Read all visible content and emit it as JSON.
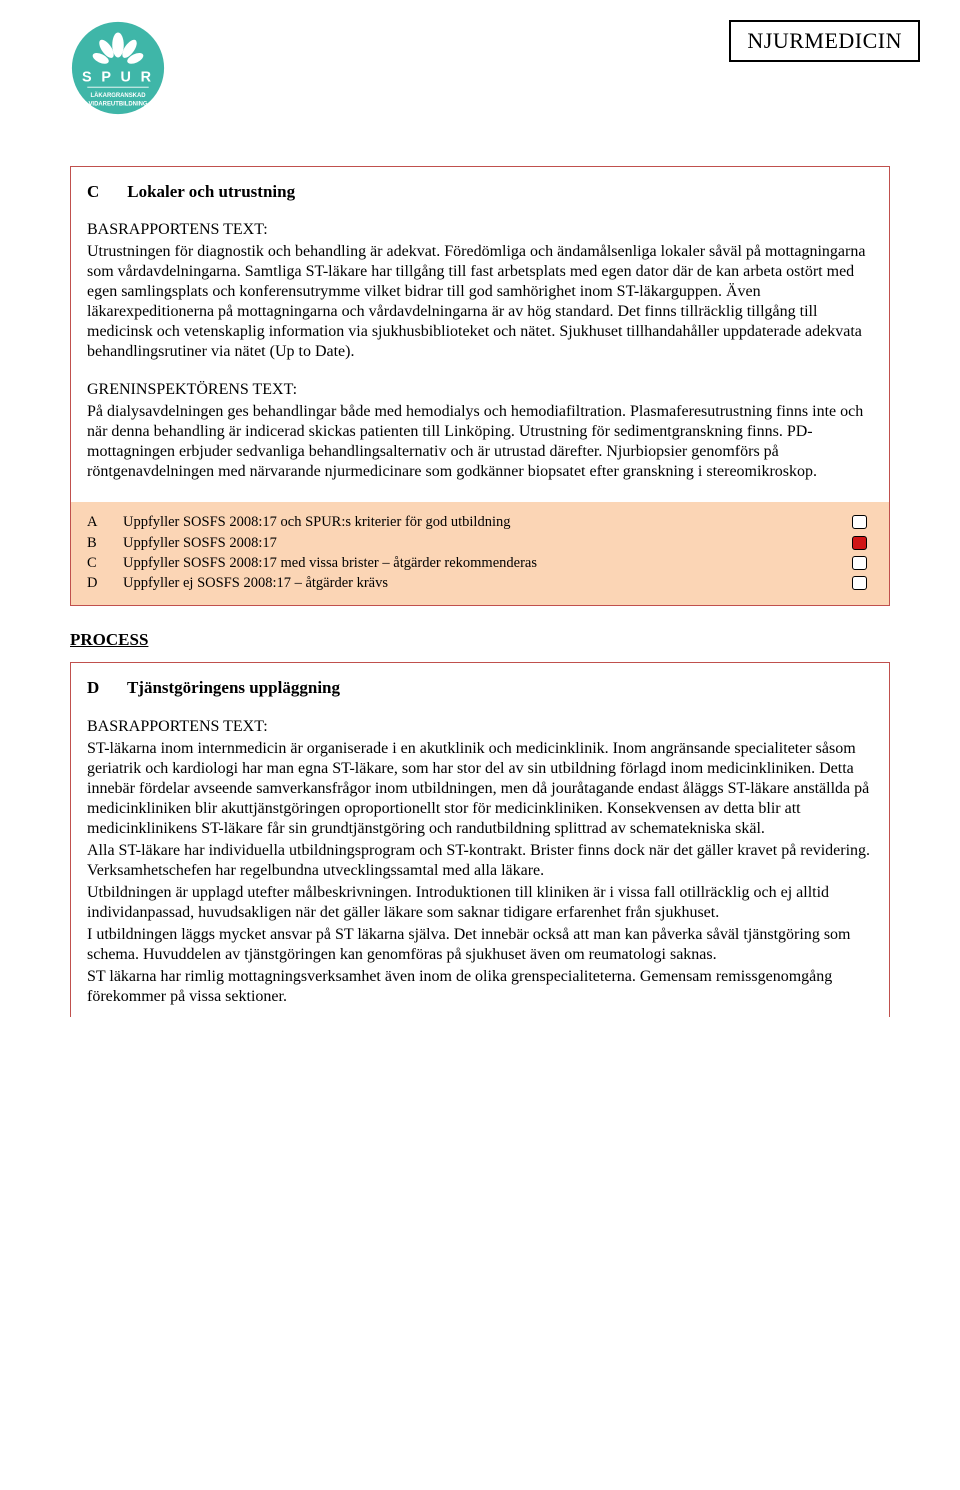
{
  "header": {
    "category": "NJURMEDICIN",
    "logo": {
      "circle_color": "#3fb6a8",
      "leaf_color": "#ffffff",
      "text_top": "S P U R",
      "text_bottom1": "LÄKARGRANSKAD",
      "text_bottom2": "VIDAREUTBILDNING"
    }
  },
  "sectionC": {
    "letter": "C",
    "title": "Lokaler och utrustning",
    "bas_label": "BASRAPPORTENS TEXT:",
    "bas_text": "Utrustningen för diagnostik och behandling är adekvat. Föredömliga och ändamålsenliga lokaler såväl på mottagningarna som vårdavdelningarna.  Samtliga ST-läkare har tillgång till fast arbetsplats med egen dator där de kan arbeta ostört med egen samlingsplats och konferensutrymme vilket bidrar till god samhörighet inom ST-läkarguppen. Även läkarexpeditionerna på mottagningarna och vårdavdelningarna är av hög standard. Det finns tillräcklig tillgång till medicinsk och vetenskaplig information via sjukhusbiblioteket och nätet. Sjukhuset tillhandahåller uppdaterade adekvata behandlingsrutiner via nätet (Up to Date).",
    "gren_label": "GRENINSPEKTÖRENS TEXT:",
    "gren_text": "På dialysavdelningen ges behandlingar både med hemodialys och hemodiafiltration. Plasmaferesutrustning finns inte och när denna behandling är indicerad skickas patienten till Linköping. Utrustning för sedimentgranskning finns. PD-mottagningen erbjuder sedvanliga behandlingsalternativ och är utrustad därefter. Njurbiopsier genomförs på röntgenavdelningen med närvarande njurmedicinare som godkänner biopsatet efter granskning i stereomikroskop."
  },
  "grades": {
    "rows": [
      {
        "letter": "A",
        "text": "Uppfyller SOSFS 2008:17 och SPUR:s kriterier för god utbildning",
        "filled": false
      },
      {
        "letter": "B",
        "text": "Uppfyller SOSFS 2008:17",
        "filled": true
      },
      {
        "letter": "C",
        "text": "Uppfyller SOSFS 2008:17 med vissa brister – åtgärder rekommenderas",
        "filled": false
      },
      {
        "letter": "D",
        "text": "Uppfyller ej SOSFS 2008:17 – åtgärder krävs",
        "filled": false
      }
    ],
    "bg_color": "#fbd5b5",
    "fill_color": "#d01515"
  },
  "process": {
    "heading": "PROCESS"
  },
  "sectionD": {
    "letter": "D",
    "title": "Tjänstgöringens uppläggning",
    "bas_label": "BASRAPPORTENS TEXT:",
    "p1": "ST-läkarna inom internmedicin är organiserade i en akutklinik och medicinklinik. Inom angränsande specialiteter såsom geriatrik och kardiologi har man egna ST-läkare, som har stor del av sin utbildning förlagd inom medicinkliniken. Detta innebär fördelar avseende samverkansfrågor inom utbildningen, men då jouråtagande endast åläggs ST-läkare anställda på medicinkliniken blir akuttjänstgöringen oproportionellt stor för medicinkliniken. Konsekvensen av detta blir att medicinklinikens ST-läkare får sin grundtjänstgöring och randutbildning splittrad av schematekniska skäl.",
    "p2": "Alla ST-läkare har individuella utbildningsprogram och ST-kontrakt. Brister finns dock när det gäller kravet på revidering. Verksamhetschefen har regelbundna utvecklingssamtal med alla läkare.",
    "p3": "Utbildningen är upplagd utefter målbeskrivningen. Introduktionen till kliniken är i vissa fall otillräcklig och ej alltid individanpassad, huvudsakligen när det gäller läkare som saknar tidigare erfarenhet från sjukhuset.",
    "p4": "I utbildningen läggs mycket ansvar på ST läkarna själva. Det innebär också att man kan påverka såväl tjänstgöring som schema. Huvuddelen av tjänstgöringen kan genomföras på sjukhuset även om reumatologi saknas.",
    "p5": "ST läkarna har rimlig mottagningsverksamhet även inom de olika grenspecialiteterna. Gemensam remissgenomgång förekommer på vissa sektioner."
  },
  "styling": {
    "border_color": "#c0504d",
    "page_bg": "#ffffff",
    "text_color": "#000000"
  }
}
